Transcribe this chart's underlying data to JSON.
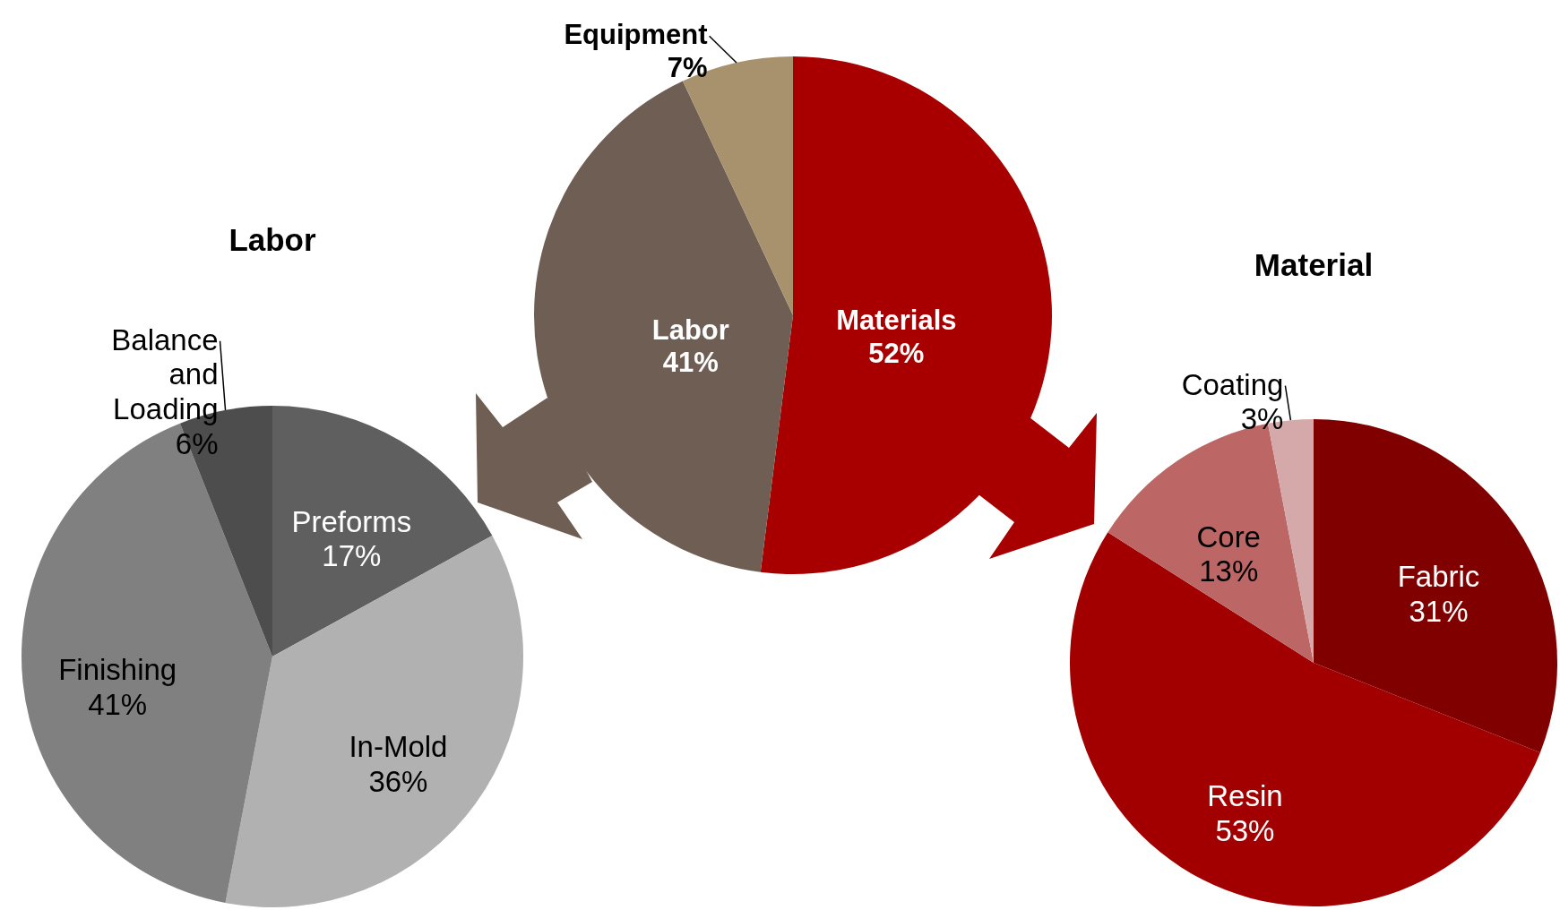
{
  "chart_data": [
    {
      "type": "pie",
      "categories": [
        "Materials",
        "Labor",
        "Equipment"
      ],
      "values": [
        52,
        41,
        7
      ],
      "colors": [
        "#a80000",
        "#6e5e54",
        "#a8926e"
      ],
      "value_labels": [
        "52%",
        "41%",
        "7%"
      ]
    },
    {
      "type": "pie",
      "title": "Labor",
      "categories": [
        "Preforms",
        "In-Mold",
        "Finishing",
        "Balance and Loading"
      ],
      "values": [
        17,
        36,
        41,
        6
      ],
      "colors": [
        "#5f5f5f",
        "#b1b1b1",
        "#808080",
        "#4d4d4d"
      ],
      "value_labels": [
        "17%",
        "36%",
        "41%",
        "6%"
      ]
    },
    {
      "type": "pie",
      "title": "Material",
      "categories": [
        "Fabric",
        "Resin",
        "Core",
        "Coating"
      ],
      "values": [
        31,
        53,
        13,
        3
      ],
      "colors": [
        "#800000",
        "#a20000",
        "#bc6766",
        "#d5a9a9"
      ],
      "value_labels": [
        "31%",
        "53%",
        "13%",
        "3%"
      ]
    }
  ]
}
